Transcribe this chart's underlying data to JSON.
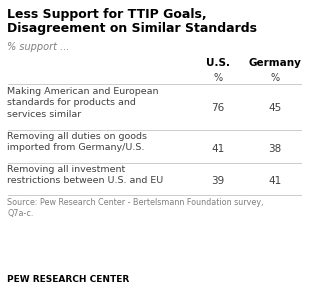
{
  "title_line1": "Less Support for TTIP Goals,",
  "title_line2": "Disagreement on Similar Standards",
  "subtitle": "% support ...",
  "col_headers": [
    "U.S.",
    "Germany"
  ],
  "col_subheaders": [
    "%",
    "%"
  ],
  "rows": [
    {
      "label": "Making American and European\nstandards for products and\nservices similar",
      "values": [
        76,
        45
      ]
    },
    {
      "label": "Removing all duties on goods\nimported from Germany/U.S.",
      "values": [
        41,
        38
      ]
    },
    {
      "label": "Removing all investment\nrestrictions between U.S. and EU",
      "values": [
        39,
        41
      ]
    }
  ],
  "source": "Source: Pew Research Center - Bertelsmann Foundation survey,\nQ7a-c.",
  "footer": "PEW RESEARCH CENTER",
  "bg_color": "#ffffff",
  "title_color": "#000000",
  "subtitle_color": "#7f7f7f",
  "header_color": "#000000",
  "data_color": "#404040",
  "source_color": "#7f7f7f",
  "footer_color": "#000000",
  "line_color": "#cccccc"
}
